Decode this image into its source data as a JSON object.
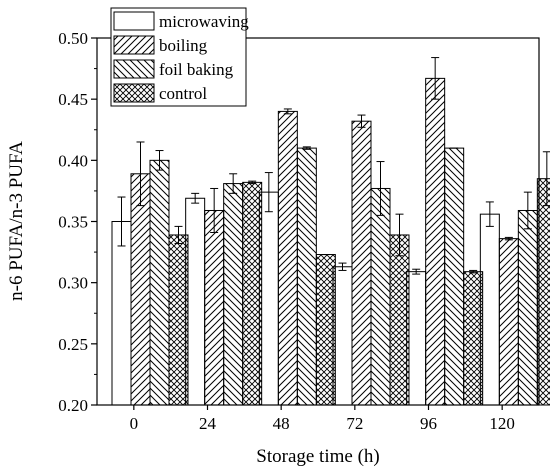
{
  "chart_data": {
    "type": "bar",
    "xlabel": "Storage time (h)",
    "ylabel": "n-6 PUFA/n-3 PUFA",
    "ylim": [
      0.2,
      0.5
    ],
    "yticks": [
      "0.20",
      "0.25",
      "0.30",
      "0.35",
      "0.40",
      "0.45",
      "0.50"
    ],
    "categories": [
      "0",
      "24",
      "48",
      "72",
      "96",
      "120"
    ],
    "legend_position": "top-left",
    "grid": false,
    "series": [
      {
        "name": "microwaving",
        "pattern": "blank",
        "values": [
          0.35,
          0.369,
          0.374,
          0.313,
          0.309,
          0.356
        ],
        "errors": [
          0.02,
          0.004,
          0.016,
          0.003,
          0.002,
          0.01
        ]
      },
      {
        "name": "boiling",
        "pattern": "diagonal-forward",
        "values": [
          0.389,
          0.359,
          0.44,
          0.432,
          0.467,
          0.336
        ],
        "errors": [
          0.026,
          0.018,
          0.002,
          0.005,
          0.017,
          0.001
        ]
      },
      {
        "name": "foil baking",
        "pattern": "diagonal-back",
        "values": [
          0.4,
          0.381,
          0.41,
          0.377,
          0.41,
          0.359
        ],
        "errors": [
          0.008,
          0.008,
          0.001,
          0.022,
          0.0,
          0.015
        ]
      },
      {
        "name": "control",
        "pattern": "crosshatch",
        "values": [
          0.339,
          0.382,
          0.323,
          0.339,
          0.309,
          0.385
        ],
        "errors": [
          0.007,
          0.001,
          0.0,
          0.017,
          0.001,
          0.022
        ]
      }
    ]
  }
}
